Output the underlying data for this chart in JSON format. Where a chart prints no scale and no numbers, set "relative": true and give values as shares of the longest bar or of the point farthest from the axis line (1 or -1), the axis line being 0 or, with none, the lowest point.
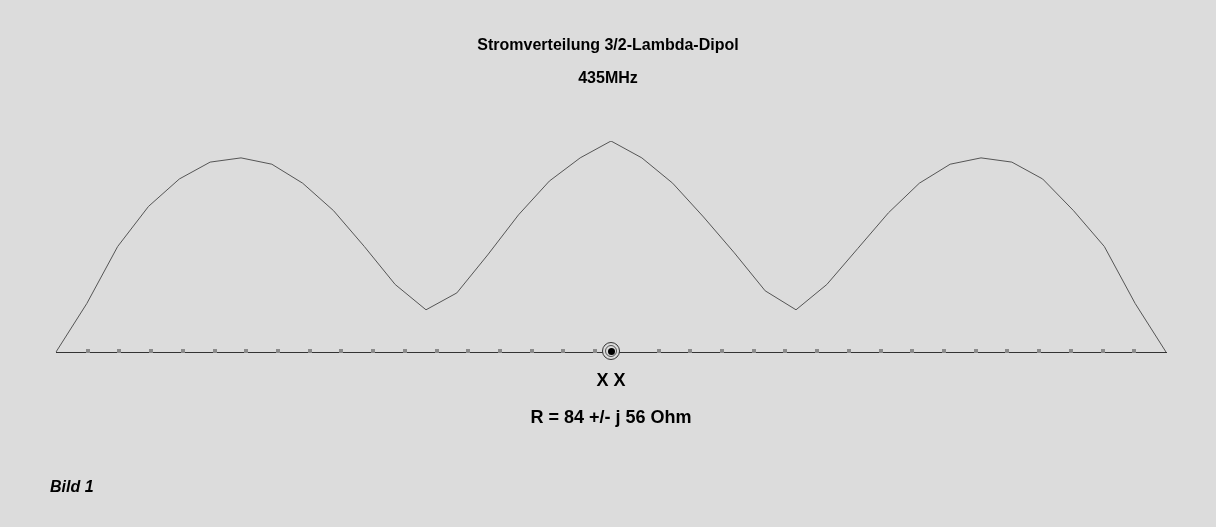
{
  "chart_data": {
    "type": "line",
    "title": "Stromverteilung 3/2-Lambda-Dipol",
    "subtitle": "435MHz",
    "relative": true,
    "color": "#555555",
    "categories": [
      null,
      null,
      null,
      null,
      null,
      null,
      null,
      null,
      null,
      null,
      null,
      null,
      null,
      null,
      null,
      null,
      null,
      null,
      null,
      null,
      null,
      null,
      null,
      null,
      null,
      null,
      null,
      null,
      null,
      null,
      null,
      null,
      null,
      null,
      null,
      null,
      null
    ],
    "values": [
      0,
      0.23,
      0.5,
      0.69,
      0.82,
      0.9,
      0.92,
      0.89,
      0.8,
      0.67,
      0.5,
      0.32,
      0.2,
      0.28,
      0.46,
      0.65,
      0.81,
      0.92,
      1,
      0.92,
      0.8,
      0.64,
      0.47,
      0.29,
      0.2,
      0.32,
      0.49,
      0.66,
      0.8,
      0.89,
      0.92,
      0.9,
      0.82,
      0.67,
      0.5,
      0.23,
      0
    ],
    "annotations": [
      "X X",
      "R = 84 +/- j 56 Ohm",
      "Bild 1"
    ]
  }
}
